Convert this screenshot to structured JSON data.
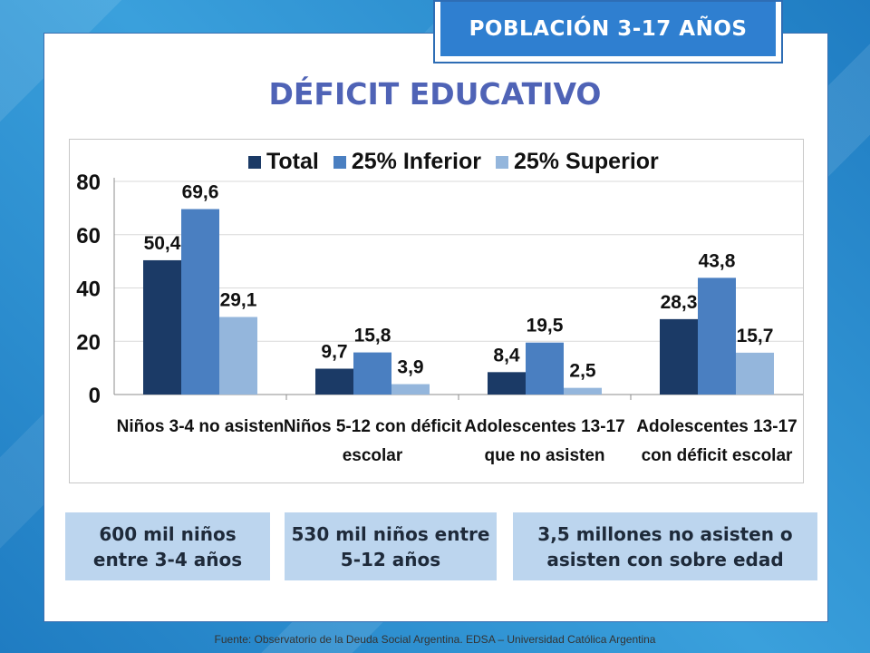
{
  "header": {
    "badge": "POBLACIÓN 3-17 AÑOS",
    "title": "DÉFICIT EDUCATIVO"
  },
  "colors": {
    "total": "#1b3a66",
    "inferior": "#4a7fc1",
    "superior": "#94b6dc"
  },
  "chart_data": {
    "type": "bar",
    "categories": [
      [
        "Niños 3-4 no asisten"
      ],
      [
        "Niños 5-12 con déficit",
        "escolar"
      ],
      [
        "Adolescentes 13-17",
        "que no asisten"
      ],
      [
        "Adolescentes 13-17",
        "con déficit escolar"
      ]
    ],
    "series": [
      {
        "name": "Total",
        "values": [
          50.4,
          9.7,
          8.4,
          28.3
        ]
      },
      {
        "name": "25% Inferior",
        "values": [
          69.6,
          15.8,
          19.5,
          43.8
        ]
      },
      {
        "name": "25% Superior",
        "values": [
          29.1,
          3.9,
          2.5,
          15.7
        ]
      }
    ],
    "value_labels": [
      [
        "50,4",
        "9,7",
        "8,4",
        "28,3"
      ],
      [
        "69,6",
        "15,8",
        "19,5",
        "43,8"
      ],
      [
        "29,1",
        "3,9",
        "2,5",
        "15,7"
      ]
    ],
    "yticks": [
      "0",
      "20",
      "40",
      "60",
      "80"
    ],
    "ylim": [
      0,
      80
    ],
    "grid": true,
    "legend": "top"
  },
  "boxes": [
    "600 mil niños entre 3-4 años",
    "530 mil niños entre 5-12 años",
    "3,5 millones no asisten o asisten con sobre edad"
  ],
  "footer": "Fuente:  Observatorio de  la Deuda Social Argentina. EDSA  – Universidad Católica Argentina"
}
